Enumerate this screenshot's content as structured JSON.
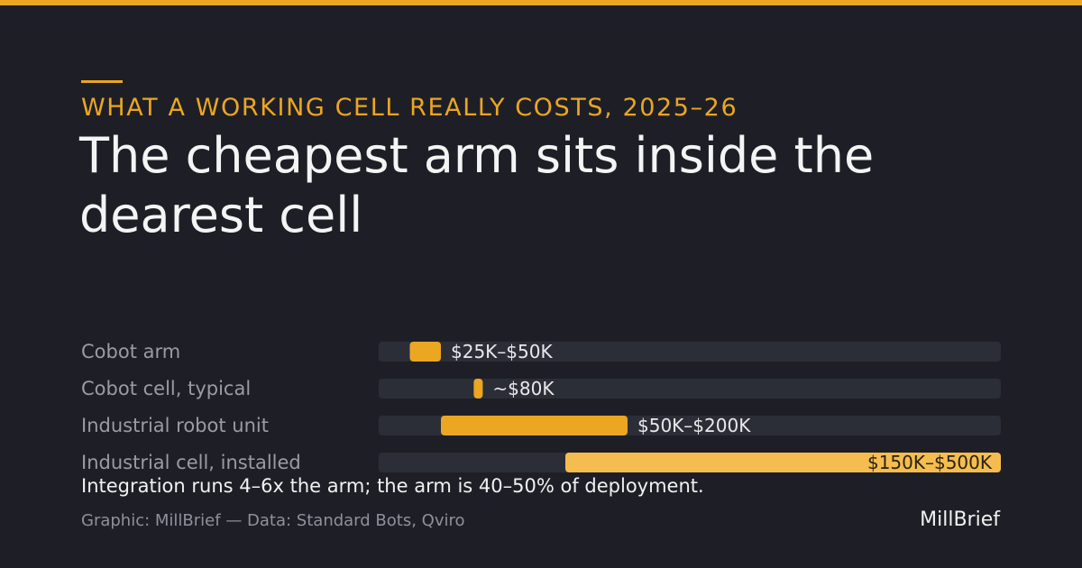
{
  "header": {
    "kicker": "WHAT A WORKING CELL REALLY COSTS, 2025–26",
    "title": "The cheapest arm sits inside the dearest cell"
  },
  "chart_data": {
    "type": "bar",
    "orientation": "horizontal",
    "subtype": "range",
    "xlim": [
      0,
      500
    ],
    "unit": "$K",
    "categories": [
      "Cobot arm",
      "Cobot cell, typical",
      "Industrial robot unit",
      "Industrial cell, installed"
    ],
    "bars": [
      {
        "label": "Cobot arm",
        "low": 25,
        "high": 50,
        "value_label": "$25K–$50K",
        "color": "#eba622"
      },
      {
        "label": "Cobot cell, typical",
        "low": 80,
        "high": 80,
        "value_label": "~$80K",
        "color": "#eba622"
      },
      {
        "label": "Industrial robot unit",
        "low": 50,
        "high": 200,
        "value_label": "$50K–$200K",
        "color": "#eba622"
      },
      {
        "label": "Industrial cell, installed",
        "low": 150,
        "high": 500,
        "value_label": "$150K–$500K",
        "color": "#f5bd4f"
      }
    ],
    "track_color": "#2c2e37",
    "grid": false,
    "legend": "none"
  },
  "summary": "Integration runs 4–6x the arm; the arm is 40–50% of deployment.",
  "footer": {
    "source": "Graphic: MillBrief — Data: Standard Bots, Qviro",
    "brand": "MillBrief"
  }
}
